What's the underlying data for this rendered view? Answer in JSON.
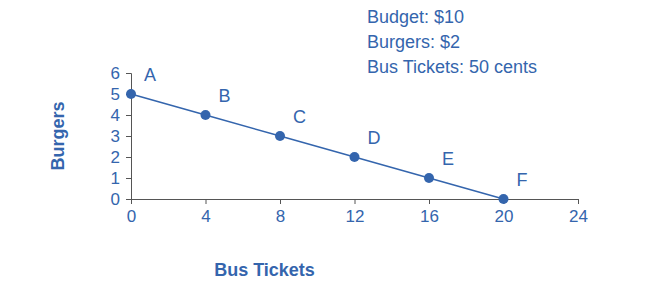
{
  "chart_data": {
    "type": "line",
    "xlabel": "Bus Tickets",
    "ylabel": "Burgers",
    "annotations": [
      "Budget: $10",
      "Burgers: $2",
      "Bus Tickets: 50 cents"
    ],
    "x": [
      0,
      4,
      8,
      12,
      16,
      20
    ],
    "values": [
      5,
      4,
      3,
      2,
      1,
      0
    ],
    "labels": [
      "A",
      "B",
      "C",
      "D",
      "E",
      "F"
    ],
    "color": "#3465ad",
    "marker": "circle",
    "line_style": "solid",
    "xlim": [
      0,
      24
    ],
    "xticks": [
      0,
      4,
      8,
      12,
      16,
      20,
      24
    ],
    "ylim": [
      0,
      6
    ],
    "yticks": [
      0,
      1,
      2,
      3,
      4,
      5,
      6
    ],
    "grid": false
  }
}
